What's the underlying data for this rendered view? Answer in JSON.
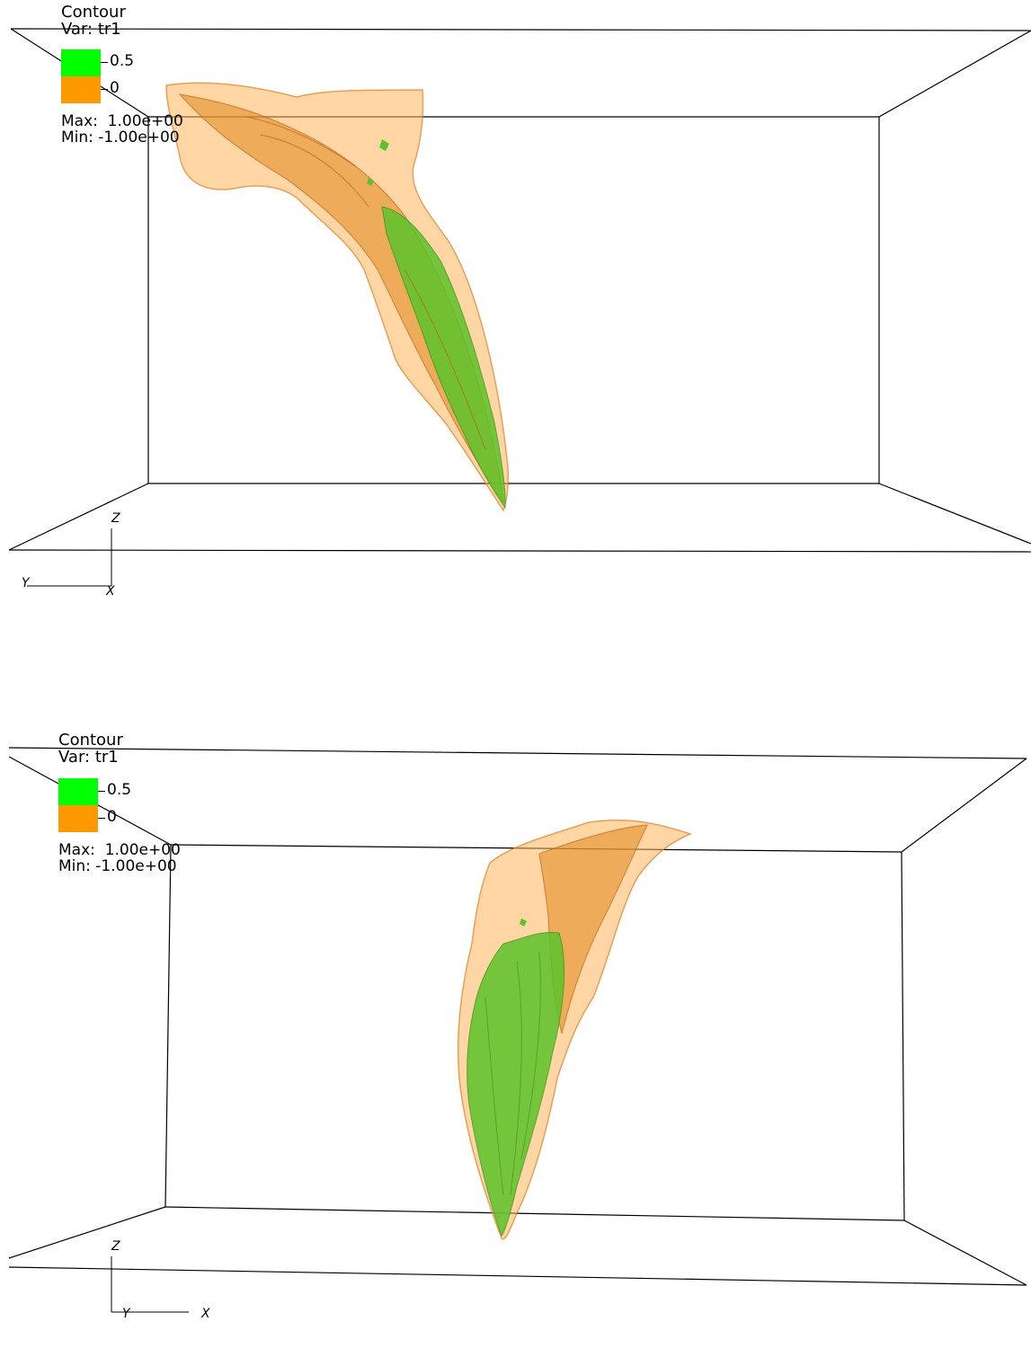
{
  "panels": [
    {
      "legend": {
        "title": "Contour",
        "variable": "Var: tr1",
        "levels": [
          {
            "label": "0.5",
            "color": "#00ff00"
          },
          {
            "label": "0",
            "color": "#ff9900"
          }
        ],
        "max": "Max:  1.00e+00",
        "min": "Min: -1.00e+00"
      },
      "axes": {
        "z": "Z",
        "y": "Y",
        "x": "X"
      }
    },
    {
      "legend": {
        "title": "Contour",
        "variable": "Var: tr1",
        "levels": [
          {
            "label": "0.5",
            "color": "#00ff00"
          },
          {
            "label": "0",
            "color": "#ff9900"
          }
        ],
        "max": "Max:  1.00e+00",
        "min": "Min: -1.00e+00"
      },
      "axes": {
        "z": "Z",
        "y": "Y",
        "x": "X"
      }
    }
  ],
  "colors": {
    "contour_high": "#00ff00",
    "contour_low": "#ff9900",
    "isosurface_outer": "#ffcc88",
    "isosurface_inner": "#e08a1e",
    "isosurface_green": "#5cc22a",
    "bounding_box": "#000000"
  }
}
